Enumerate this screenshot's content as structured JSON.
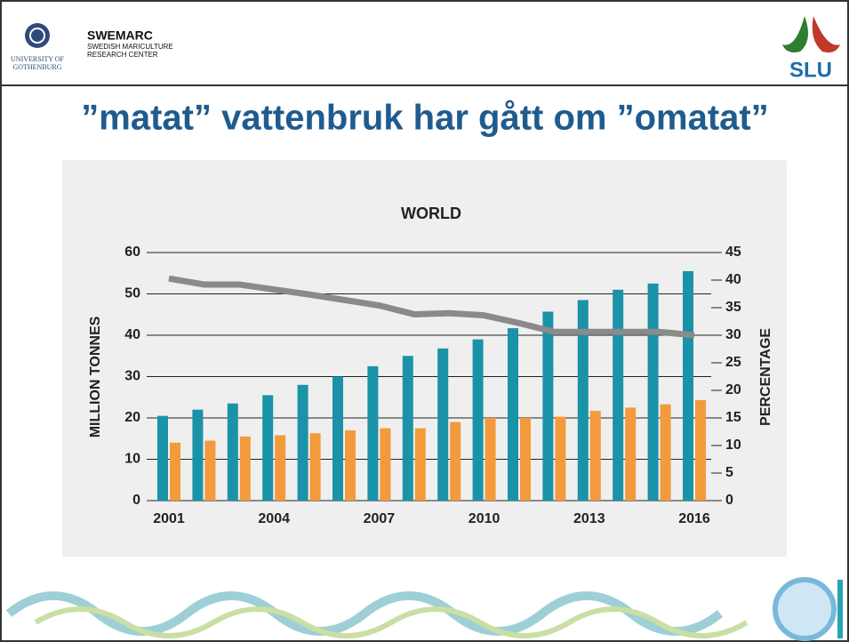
{
  "header": {
    "university": [
      "UNIVERSITY OF",
      "GOTHENBURG"
    ],
    "org": "SWEMARC",
    "org_subtitle": [
      "SWEDISH MARICULTURE",
      "RESEARCH CENTER"
    ],
    "slu": "SLU"
  },
  "slide_title": "”matat” vattenbruk har gått om ”omatat”",
  "chart_data": {
    "type": "bar",
    "title": "WORLD",
    "ylabel": "MILLION TONNES",
    "y2label": "PERCENTAGE",
    "categories": [
      "2001",
      null,
      null,
      "2004",
      null,
      null,
      "2007",
      null,
      null,
      "2010",
      null,
      null,
      "2013",
      null,
      null,
      "2016"
    ],
    "series": [
      {
        "type": "bar",
        "color": "#1a93a8",
        "values": [
          20.5,
          22,
          23.5,
          25.5,
          28,
          30,
          32.5,
          35,
          36.8,
          39,
          41.7,
          45.7,
          48.5,
          51,
          52.5,
          55.5
        ]
      },
      {
        "type": "bar",
        "color": "#f39a3c",
        "values": [
          14,
          14.5,
          15.5,
          15.8,
          16.3,
          17,
          17.5,
          17.5,
          19,
          20,
          20,
          20.3,
          21.7,
          22.5,
          23.3,
          24.3
        ]
      },
      {
        "type": "line",
        "axis": "y2",
        "color": "#8a8a8a",
        "values": [
          40.3,
          39.2,
          39.2,
          38.3,
          37.4,
          36.4,
          35.4,
          33.8,
          34,
          33.6,
          32.2,
          30.6,
          30.6,
          30.6,
          30.6,
          30
        ]
      }
    ],
    "ylim": [
      0,
      60
    ],
    "yticks": [
      0,
      10,
      20,
      30,
      40,
      50,
      60
    ],
    "y2lim": [
      0,
      45
    ],
    "y2ticks": [
      0,
      5,
      10,
      15,
      20,
      25,
      30,
      35,
      40,
      45
    ],
    "grid": true
  }
}
